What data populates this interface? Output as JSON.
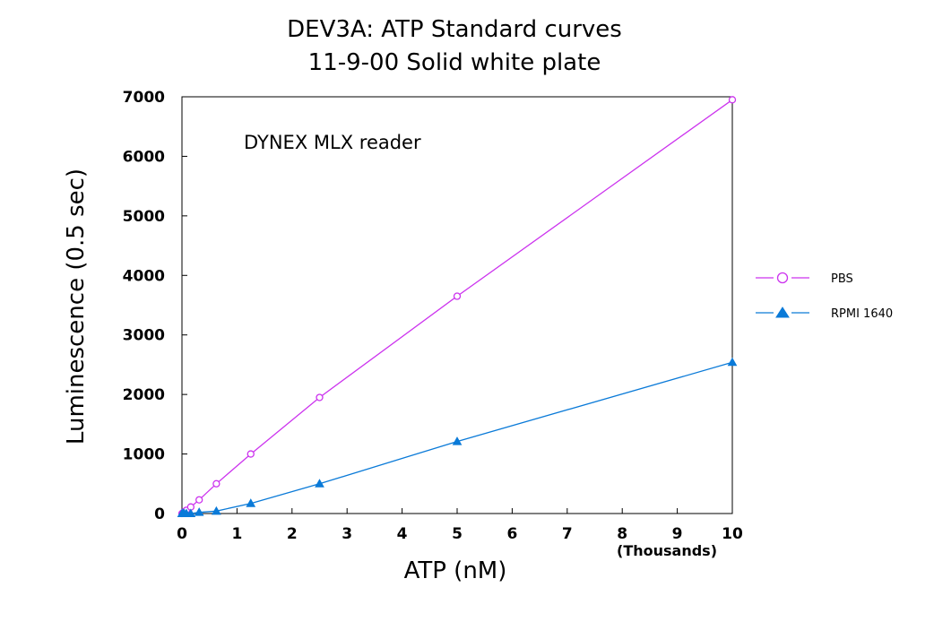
{
  "chart_data": {
    "type": "line",
    "title": "DEV3A: ATP Standard curves",
    "subtitle": "11-9-00  Solid white plate",
    "xlabel": "ATP (nM)",
    "ylabel": "Luminescence (0.5 sec)",
    "x_scale_note": "(Thousands)",
    "annotation": "DYNEX MLX reader",
    "xlim": [
      0,
      10
    ],
    "ylim": [
      0,
      7000
    ],
    "x_ticks": [
      "0",
      "1",
      "2",
      "3",
      "4",
      "5",
      "6",
      "7",
      "8",
      "9",
      "10"
    ],
    "y_ticks": [
      "0",
      "1000",
      "2000",
      "3000",
      "4000",
      "5000",
      "6000",
      "7000"
    ],
    "grid": false,
    "legend_position": "right",
    "series": [
      {
        "name": "PBS",
        "marker": "open-circle",
        "color": "#cc33ee",
        "x": [
          0,
          0.02,
          0.04,
          0.08,
          0.16,
          0.3125,
          0.625,
          1.25,
          2.5,
          5,
          10
        ],
        "y": [
          0,
          15,
          30,
          55,
          110,
          230,
          500,
          1000,
          1950,
          3650,
          6950
        ]
      },
      {
        "name": "RPMI 1640",
        "marker": "filled-triangle",
        "color": "#0a7ad8",
        "x": [
          0,
          0.02,
          0.04,
          0.08,
          0.16,
          0.3125,
          0.625,
          1.25,
          2.5,
          5,
          10
        ],
        "y": [
          0,
          0,
          0,
          0,
          0,
          20,
          40,
          170,
          500,
          1210,
          2540
        ]
      }
    ]
  }
}
